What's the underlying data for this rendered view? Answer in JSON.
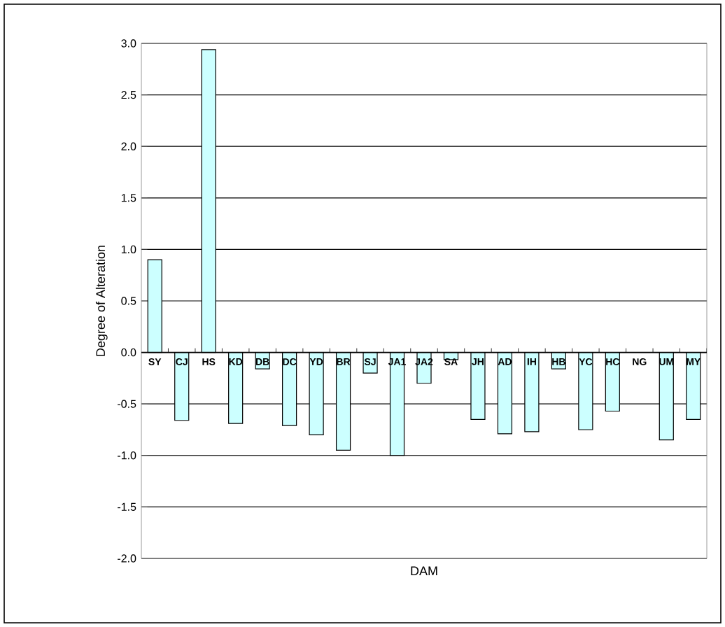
{
  "chart_data": {
    "type": "bar",
    "xlabel": "DAM",
    "ylabel": "Degree of Alteration",
    "categories": [
      "SY",
      "CJ",
      "HS",
      "KD",
      "DB",
      "DC",
      "YD",
      "BR",
      "SJ",
      "JA1",
      "JA2",
      "SA",
      "JH",
      "AD",
      "IH",
      "HB",
      "YC",
      "HC",
      "NG",
      "UM",
      "MY"
    ],
    "values": [
      0.9,
      -0.66,
      2.94,
      -0.69,
      -0.16,
      -0.71,
      -0.8,
      -0.95,
      -0.2,
      -1.0,
      -0.3,
      -0.07,
      -0.65,
      -0.79,
      -0.77,
      -0.16,
      -0.75,
      -0.57,
      null,
      -0.85,
      -0.65
    ],
    "color": "#ccffff",
    "ylim": [
      -2.0,
      3.0
    ],
    "yticks": [
      {
        "value": -2.0,
        "label": "-2.0"
      },
      {
        "value": -1.5,
        "label": "-1.5"
      },
      {
        "value": -1.0,
        "label": "-1.0"
      },
      {
        "value": -0.5,
        "label": "-0.5"
      },
      {
        "value": 0.0,
        "label": "0.0"
      },
      {
        "value": 0.5,
        "label": "0.5"
      },
      {
        "value": 1.0,
        "label": "1.0"
      },
      {
        "value": 1.5,
        "label": "1.5"
      },
      {
        "value": 2.0,
        "label": "2.0"
      },
      {
        "value": 2.5,
        "label": "2.5"
      },
      {
        "value": 3.0,
        "label": "3.0"
      }
    ],
    "grid": "y"
  }
}
